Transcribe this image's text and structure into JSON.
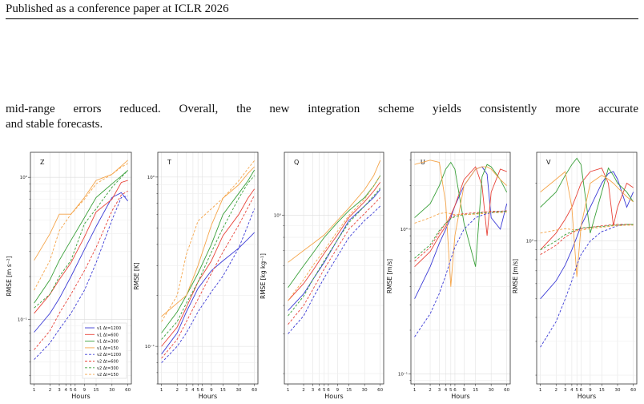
{
  "header": {
    "text": "Published as a conference paper at ICLR 2026"
  },
  "paragraph": {
    "line1": "mid-range errors reduced. Overall, the new integration scheme yields consistently more accurate",
    "line2": "and stable forecasts."
  },
  "chart_data": [
    {
      "type": "line",
      "panel": "Z",
      "title": "Z",
      "xlabel": "Hours",
      "ylabel": "RMSE [m s⁻²]",
      "xscale": "log",
      "yscale": "log",
      "xticks": [
        "1",
        "2",
        "3",
        "4",
        "5",
        "6",
        "9",
        "15",
        "30",
        "60"
      ],
      "yticks": [
        "10⁻¹",
        "10⁰"
      ],
      "x": [
        1,
        2,
        3,
        5,
        9,
        15,
        30,
        45,
        60
      ],
      "series": [
        {
          "name": "v1 Δt=1200",
          "color": "#3b3bd6",
          "dash": false,
          "values": [
            0.081,
            0.11,
            0.14,
            0.2,
            0.31,
            0.45,
            0.72,
            0.78,
            0.68
          ]
        },
        {
          "name": "v1 Δt=600",
          "color": "#e8443a",
          "dash": false,
          "values": [
            0.11,
            0.15,
            0.19,
            0.25,
            0.38,
            0.57,
            0.7,
            0.92,
            0.95
          ]
        },
        {
          "name": "v1 Δt=300",
          "color": "#3aa03a",
          "dash": false,
          "values": [
            0.13,
            0.19,
            0.26,
            0.36,
            0.52,
            0.72,
            0.9,
            1.02,
            1.12
          ]
        },
        {
          "name": "v1 Δt=150",
          "color": "#f5a54a",
          "dash": false,
          "values": [
            0.26,
            0.4,
            0.55,
            0.55,
            0.72,
            0.95,
            1.05,
            1.2,
            1.32
          ]
        },
        {
          "name": "v2 Δt=1200",
          "color": "#3b3bd6",
          "dash": true,
          "values": [
            0.052,
            0.068,
            0.085,
            0.11,
            0.16,
            0.25,
            0.5,
            0.72,
            0.74
          ]
        },
        {
          "name": "v2 Δt=600",
          "color": "#e8443a",
          "dash": true,
          "values": [
            0.061,
            0.083,
            0.11,
            0.15,
            0.22,
            0.32,
            0.58,
            0.75,
            0.8
          ]
        },
        {
          "name": "v2 Δt=300",
          "color": "#3aa03a",
          "dash": true,
          "values": [
            0.12,
            0.15,
            0.2,
            0.26,
            0.47,
            0.6,
            0.85,
            1.0,
            1.12
          ]
        },
        {
          "name": "v2 Δt=150",
          "color": "#f5a54a",
          "dash": true,
          "values": [
            0.16,
            0.26,
            0.42,
            0.55,
            0.7,
            0.9,
            1.05,
            1.18,
            1.25
          ]
        }
      ],
      "legend": "lower-right"
    },
    {
      "type": "line",
      "panel": "T",
      "title": "T",
      "xlabel": "Hours",
      "ylabel": "RMSE [K]",
      "xscale": "log",
      "yscale": "log",
      "xticks": [
        "1",
        "2",
        "3",
        "4",
        "5",
        "6",
        "9",
        "15",
        "30",
        "60"
      ],
      "yticks": [
        "10⁻¹",
        "10⁰"
      ],
      "x": [
        1,
        2,
        3,
        5,
        9,
        15,
        30,
        45,
        60
      ],
      "series": [
        {
          "name": "v1 Δt=1200",
          "color": "#3b3bd6",
          "dash": false,
          "values": [
            0.09,
            0.12,
            0.16,
            0.22,
            0.28,
            0.32,
            0.38,
            0.43,
            0.47
          ]
        },
        {
          "name": "v1 Δt=600",
          "color": "#e8443a",
          "dash": false,
          "values": [
            0.1,
            0.13,
            0.17,
            0.24,
            0.32,
            0.45,
            0.6,
            0.75,
            0.85
          ]
        },
        {
          "name": "v1 Δt=300",
          "color": "#3aa03a",
          "dash": false,
          "values": [
            0.12,
            0.16,
            0.2,
            0.27,
            0.4,
            0.6,
            0.8,
            0.95,
            1.1
          ]
        },
        {
          "name": "v1 Δt=150",
          "color": "#f5a54a",
          "dash": false,
          "values": [
            0.15,
            0.18,
            0.2,
            0.3,
            0.52,
            0.75,
            0.9,
            1.05,
            1.15
          ]
        },
        {
          "name": "v2 Δt=1200",
          "color": "#3b3bd6",
          "dash": true,
          "values": [
            0.08,
            0.1,
            0.12,
            0.16,
            0.21,
            0.26,
            0.38,
            0.52,
            0.65
          ]
        },
        {
          "name": "v2 Δt=600",
          "color": "#e8443a",
          "dash": true,
          "values": [
            0.085,
            0.11,
            0.14,
            0.19,
            0.27,
            0.36,
            0.52,
            0.66,
            0.78
          ]
        },
        {
          "name": "v2 Δt=300",
          "color": "#3aa03a",
          "dash": true,
          "values": [
            0.11,
            0.14,
            0.18,
            0.24,
            0.36,
            0.5,
            0.75,
            0.92,
            1.02
          ]
        },
        {
          "name": "v2 Δt=150",
          "color": "#f5a54a",
          "dash": true,
          "values": [
            0.14,
            0.2,
            0.35,
            0.55,
            0.65,
            0.75,
            0.95,
            1.12,
            1.25
          ]
        }
      ]
    },
    {
      "type": "line",
      "panel": "Q",
      "title": "Q",
      "xlabel": "Hours",
      "ylabel": "RMSE [kg kg⁻¹]",
      "xscale": "log",
      "yscale": "log",
      "xticks": [
        "1",
        "2",
        "3",
        "4",
        "5",
        "6",
        "9",
        "15",
        "30",
        "60"
      ],
      "yticks": [
        "10⁰"
      ],
      "x": [
        1,
        2,
        3,
        5,
        9,
        15,
        30,
        45,
        60
      ],
      "series": [
        {
          "name": "v1 Δt=1200",
          "color": "#3b3bd6",
          "dash": false,
          "values": [
            0.38,
            0.45,
            0.52,
            0.62,
            0.78,
            0.95,
            1.1,
            1.2,
            1.3
          ]
        },
        {
          "name": "v1 Δt=600",
          "color": "#e8443a",
          "dash": false,
          "values": [
            0.42,
            0.5,
            0.57,
            0.68,
            0.82,
            0.98,
            1.15,
            1.28,
            1.4
          ]
        },
        {
          "name": "v1 Δt=300",
          "color": "#3aa03a",
          "dash": false,
          "values": [
            0.48,
            0.6,
            0.68,
            0.8,
            0.93,
            1.05,
            1.2,
            1.35,
            1.5
          ]
        },
        {
          "name": "v1 Δt=150",
          "color": "#f5a54a",
          "dash": false,
          "values": [
            0.62,
            0.7,
            0.75,
            0.82,
            0.95,
            1.08,
            1.3,
            1.5,
            1.75
          ]
        },
        {
          "name": "v2 Δt=1200",
          "color": "#3b3bd6",
          "dash": true,
          "values": [
            0.3,
            0.36,
            0.43,
            0.53,
            0.66,
            0.8,
            0.95,
            1.03,
            1.1
          ]
        },
        {
          "name": "v2 Δt=600",
          "color": "#e8443a",
          "dash": true,
          "values": [
            0.33,
            0.4,
            0.47,
            0.58,
            0.72,
            0.87,
            1.02,
            1.12,
            1.2
          ]
        },
        {
          "name": "v2 Δt=300",
          "color": "#3aa03a",
          "dash": true,
          "values": [
            0.36,
            0.44,
            0.52,
            0.63,
            0.78,
            0.93,
            1.1,
            1.22,
            1.32
          ]
        },
        {
          "name": "v2 Δt=150",
          "color": "#f5a54a",
          "dash": true,
          "values": [
            0.42,
            0.52,
            0.6,
            0.7,
            0.85,
            1.0,
            1.18,
            1.35,
            1.5
          ]
        }
      ]
    },
    {
      "type": "line",
      "panel": "U",
      "title": "U",
      "xlabel": "Hours",
      "ylabel": "RMSE [m/s]",
      "xscale": "log",
      "yscale": "log",
      "xticks": [
        "1",
        "2",
        "3",
        "4",
        "5",
        "6",
        "9",
        "15",
        "30",
        "60"
      ],
      "yticks": [
        "10⁻¹",
        "10⁰"
      ],
      "x": [
        1,
        2,
        3,
        4,
        5,
        6,
        9,
        15,
        20,
        25,
        30,
        45,
        60
      ],
      "series": [
        {
          "name": "v1 Δt=1200",
          "color": "#3b3bd6",
          "dash": false,
          "values": [
            0.33,
            0.55,
            0.8,
            1.0,
            1.2,
            1.45,
            2.0,
            2.6,
            2.7,
            2.4,
            1.2,
            1.0,
            1.5
          ]
        },
        {
          "name": "v1 Δt=600",
          "color": "#e8443a",
          "dash": false,
          "values": [
            0.55,
            0.7,
            0.9,
            1.05,
            1.25,
            1.45,
            2.2,
            2.7,
            2.0,
            0.9,
            1.8,
            2.6,
            2.5
          ]
        },
        {
          "name": "v1 Δt=300",
          "color": "#3aa03a",
          "dash": false,
          "values": [
            1.2,
            1.5,
            2.0,
            2.6,
            2.9,
            2.6,
            1.1,
            0.55,
            2.3,
            2.8,
            2.7,
            2.2,
            1.8
          ]
        },
        {
          "name": "v1 Δt=150",
          "color": "#f5a54a",
          "dash": false,
          "values": [
            2.8,
            3.0,
            2.9,
            1.5,
            0.4,
            0.9,
            2.0,
            2.6,
            2.7,
            2.7,
            2.6,
            2.2,
            2.0
          ]
        },
        {
          "name": "v2 Δt=1200",
          "color": "#3b3bd6",
          "dash": true,
          "values": [
            0.18,
            0.26,
            0.36,
            0.48,
            0.62,
            0.75,
            1.0,
            1.2,
            1.25,
            1.28,
            1.3,
            1.32,
            1.33
          ]
        },
        {
          "name": "v2 Δt=600",
          "color": "#e8443a",
          "dash": true,
          "values": [
            0.6,
            0.75,
            0.95,
            1.1,
            1.2,
            1.25,
            1.28,
            1.3,
            1.31,
            1.32,
            1.33,
            1.33,
            1.34
          ]
        },
        {
          "name": "v2 Δt=300",
          "color": "#3aa03a",
          "dash": true,
          "values": [
            0.63,
            0.78,
            0.98,
            1.1,
            1.18,
            1.22,
            1.26,
            1.28,
            1.3,
            1.3,
            1.31,
            1.32,
            1.33
          ]
        },
        {
          "name": "v2 Δt=150",
          "color": "#f5a54a",
          "dash": true,
          "values": [
            1.1,
            1.2,
            1.28,
            1.3,
            1.28,
            1.26,
            1.26,
            1.27,
            1.28,
            1.29,
            1.3,
            1.3,
            1.31
          ]
        }
      ]
    },
    {
      "type": "line",
      "panel": "V",
      "title": "V",
      "xlabel": "Hours",
      "ylabel": "RMSE [m/s]",
      "xscale": "log",
      "yscale": "log",
      "xticks": [
        "1",
        "2",
        "3",
        "4",
        "5",
        "6",
        "9",
        "15",
        "30",
        "60"
      ],
      "yticks": [
        "10⁰"
      ],
      "x": [
        1,
        2,
        3,
        4,
        5,
        6,
        9,
        15,
        20,
        25,
        30,
        45,
        60
      ],
      "series": [
        {
          "name": "v1 Δt=1200",
          "color": "#3b3bd6",
          "dash": false,
          "values": [
            0.5,
            0.62,
            0.75,
            0.9,
            1.05,
            1.2,
            1.5,
            2.0,
            2.25,
            2.3,
            2.1,
            1.5,
            1.8
          ]
        },
        {
          "name": "v1 Δt=600",
          "color": "#e8443a",
          "dash": false,
          "values": [
            0.9,
            1.1,
            1.3,
            1.5,
            1.75,
            2.0,
            2.3,
            2.4,
            2.0,
            1.2,
            1.5,
            2.0,
            1.9
          ]
        },
        {
          "name": "v1 Δt=300",
          "color": "#3aa03a",
          "dash": false,
          "values": [
            1.5,
            1.8,
            2.2,
            2.5,
            2.7,
            2.5,
            1.1,
            1.8,
            2.4,
            2.2,
            2.0,
            1.8,
            1.6
          ]
        },
        {
          "name": "v1 Δt=150",
          "color": "#f5a54a",
          "dash": false,
          "values": [
            1.8,
            2.1,
            2.3,
            1.5,
            0.65,
            1.2,
            2.0,
            2.2,
            2.1,
            2.0,
            1.9,
            1.7,
            1.6
          ]
        },
        {
          "name": "v2 Δt=1200",
          "color": "#3b3bd6",
          "dash": true,
          "values": [
            0.28,
            0.38,
            0.5,
            0.62,
            0.75,
            0.85,
            1.0,
            1.12,
            1.15,
            1.18,
            1.2,
            1.22,
            1.22
          ]
        },
        {
          "name": "v2 Δt=600",
          "color": "#e8443a",
          "dash": true,
          "values": [
            0.85,
            0.95,
            1.05,
            1.1,
            1.14,
            1.16,
            1.18,
            1.2,
            1.21,
            1.22,
            1.22,
            1.22,
            1.22
          ]
        },
        {
          "name": "v2 Δt=300",
          "color": "#3aa03a",
          "dash": true,
          "values": [
            0.9,
            1.0,
            1.08,
            1.12,
            1.15,
            1.17,
            1.18,
            1.19,
            1.2,
            1.21,
            1.21,
            1.22,
            1.22
          ]
        },
        {
          "name": "v2 Δt=150",
          "color": "#f5a54a",
          "dash": true,
          "values": [
            1.1,
            1.14,
            1.16,
            1.15,
            1.13,
            1.14,
            1.16,
            1.18,
            1.19,
            1.2,
            1.2,
            1.21,
            1.21
          ]
        }
      ]
    }
  ]
}
